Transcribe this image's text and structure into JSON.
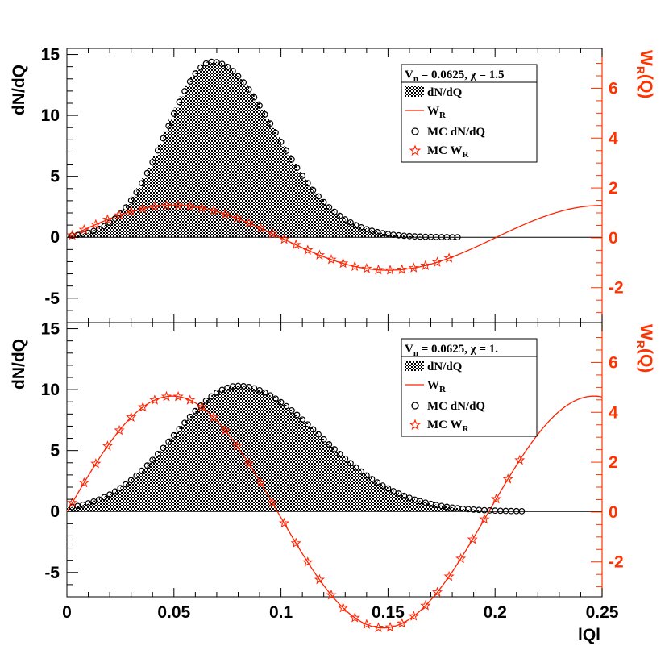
{
  "colors": {
    "data": "#000000",
    "fit": "#ff2200",
    "right_axis": "#ff3300"
  },
  "chart_data": [
    {
      "type": "bar",
      "panel": "top",
      "ylabel": "dN/dQ",
      "ylabel_right_main": "W",
      "ylabel_right_sub": "R",
      "ylabel_right_tail": "(Q)",
      "xlim": [
        0,
        0.25
      ],
      "ylim": [
        -7,
        15.5
      ],
      "y_ticks": [
        "-5",
        "0",
        "5",
        "10",
        "15"
      ],
      "ylim_right": [
        -3.4,
        7.6
      ],
      "y_ticks_right": [
        "-2",
        "0",
        "2",
        "4",
        "6"
      ],
      "params": {
        "amp": 14.4,
        "mu": 0.068,
        "sigma_left": 0.0215,
        "sigma_right": 0.029,
        "wr_amp": 1.3,
        "wr_k": 31.4
      },
      "legend": {
        "header": "V",
        "header_sub": "n",
        "header_tail": " = 0.0625, χ = 1.5",
        "entries": [
          {
            "label": "dN/dQ",
            "sub": "",
            "symbol": "hist"
          },
          {
            "label": "W",
            "sub": "R",
            "symbol": "line"
          },
          {
            "label": "MC dN/dQ",
            "sub": "",
            "symbol": "circle"
          },
          {
            "label": "MC W",
            "sub": "R",
            "symbol": "star"
          }
        ]
      },
      "series": [
        {
          "name": "dN/dQ",
          "kind": "histogram",
          "x_range": [
            0,
            0.185
          ],
          "bins": 74
        },
        {
          "name": "W_R",
          "kind": "line",
          "axis": "right",
          "x_range": [
            0,
            0.25
          ]
        },
        {
          "name": "MC dN/dQ",
          "kind": "markers",
          "x_range": [
            0.0025,
            0.1825
          ],
          "step": 0.0025
        },
        {
          "name": "MC W_R",
          "kind": "markers",
          "axis": "right",
          "x_range": [
            0.0025,
            0.1825
          ],
          "step": 0.0055
        }
      ]
    },
    {
      "type": "bar",
      "panel": "bottom",
      "ylabel": "dN/dQ",
      "ylabel_right_main": "W",
      "ylabel_right_sub": "R",
      "ylabel_right_tail": "(Q)",
      "xlabel": "lQl",
      "xlim": [
        0,
        0.25
      ],
      "x_ticks": [
        "0",
        "0.05",
        "0.1",
        "0.15",
        "0.2",
        "0.25"
      ],
      "ylim": [
        -7,
        15.5
      ],
      "y_ticks": [
        "-5",
        "0",
        "5",
        "10",
        "15"
      ],
      "ylim_right": [
        -3.4,
        7.6
      ],
      "y_ticks_right": [
        "-2",
        "0",
        "2",
        "4",
        "6"
      ],
      "params": {
        "amp": 10.3,
        "mu": 0.08,
        "sigma_left": 0.03,
        "sigma_right": 0.038,
        "wr_amp": 4.65,
        "wr_k": 31.9
      },
      "legend": {
        "header": "V",
        "header_sub": "n",
        "header_tail": " = 0.0625, χ = 1.",
        "entries": [
          {
            "label": "dN/dQ",
            "sub": "",
            "symbol": "hist"
          },
          {
            "label": "W",
            "sub": "R",
            "symbol": "line"
          },
          {
            "label": "MC dN/dQ",
            "sub": "",
            "symbol": "circle"
          },
          {
            "label": "MC W",
            "sub": "R",
            "symbol": "star"
          }
        ]
      },
      "series": [
        {
          "name": "dN/dQ",
          "kind": "histogram",
          "x_range": [
            0,
            0.215
          ],
          "bins": 86
        },
        {
          "name": "W_R",
          "kind": "line",
          "axis": "right",
          "x_range": [
            0,
            0.25
          ]
        },
        {
          "name": "MC dN/dQ",
          "kind": "markers",
          "x_range": [
            0.0025,
            0.2125
          ],
          "step": 0.0025
        },
        {
          "name": "MC W_R",
          "kind": "markers",
          "axis": "right",
          "x_range": [
            0.0025,
            0.2125
          ],
          "step": 0.0055
        }
      ]
    }
  ]
}
